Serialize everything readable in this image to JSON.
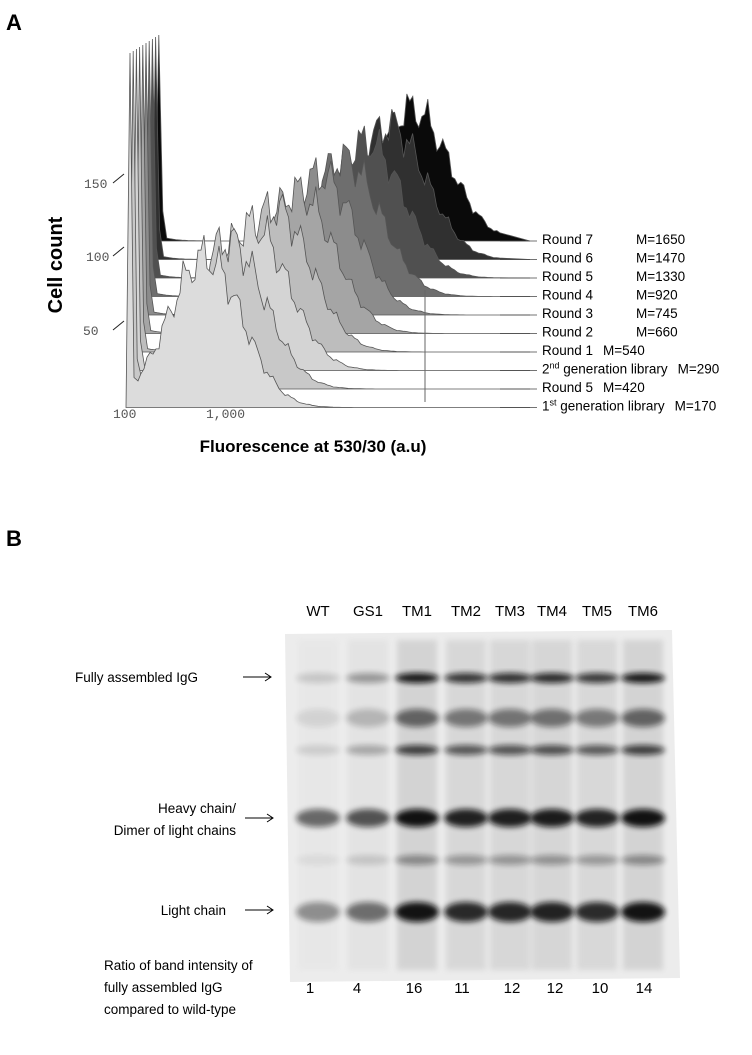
{
  "panel_a": {
    "label": "A",
    "y_axis_label": "Cell count",
    "x_axis_label": "Fluorescence at 530/30 (a.u)",
    "y_ticks": [
      "150",
      "100",
      "50"
    ],
    "x_ticks": [
      "100",
      "1,000"
    ],
    "legend": [
      {
        "label": [
          {
            "text": "Round 7"
          }
        ],
        "mean": "M=1650"
      },
      {
        "label": [
          {
            "text": "Round 6"
          }
        ],
        "mean": "M=1470"
      },
      {
        "label": [
          {
            "text": "Round 5"
          }
        ],
        "mean": "M=1330"
      },
      {
        "label": [
          {
            "text": "Round 4"
          }
        ],
        "mean": "M=920"
      },
      {
        "label": [
          {
            "text": "Round 3"
          }
        ],
        "mean": "M=745"
      },
      {
        "label": [
          {
            "text": "Round 2"
          }
        ],
        "mean": "M=660"
      },
      {
        "label": [
          {
            "text": "Round 1"
          }
        ],
        "mean": "M=540"
      },
      {
        "label": [
          {
            "text": "2"
          },
          {
            "text": "nd",
            "sup": true
          },
          {
            "text": " generation library"
          }
        ],
        "mean": "M=290"
      },
      {
        "label": [
          {
            "text": "Round 5"
          }
        ],
        "mean": "M=420"
      },
      {
        "label": [
          {
            "text": "1"
          },
          {
            "text": "st",
            "sup": true
          },
          {
            "text": " generation library"
          }
        ],
        "mean": "M=170"
      }
    ]
  },
  "panel_b": {
    "label": "B",
    "lanes": [
      "WT",
      "GS1",
      "TM1",
      "TM2",
      "TM3",
      "TM4",
      "TM5",
      "TM6"
    ],
    "band_labels": {
      "full": "Fully assembled IgG",
      "heavy": [
        "Heavy chain/",
        "Dimer of light chains"
      ],
      "light": "Light chain"
    },
    "ratio_label": [
      "Ratio of band intensity of",
      "fully assembled IgG",
      "compared to wild-type"
    ],
    "ratios": [
      1,
      4,
      16,
      11,
      12,
      12,
      10,
      14
    ]
  }
}
